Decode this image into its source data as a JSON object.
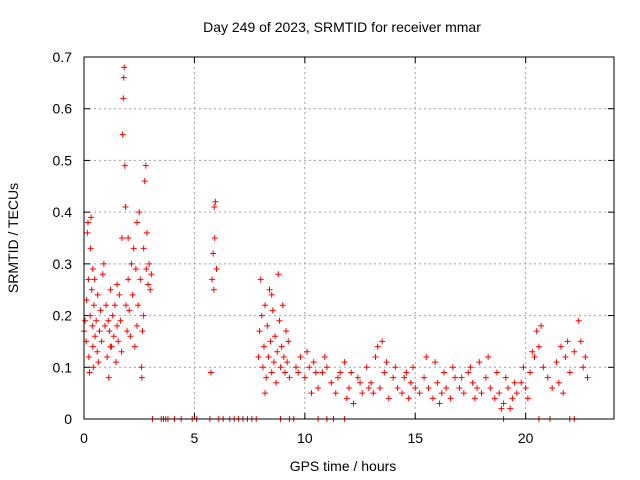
{
  "chart_data": {
    "type": "scatter",
    "title": "Day 249 of 2023, SRMTID for receiver mmar",
    "xlabel": "GPS time / hours",
    "ylabel": "SRMTID / TECUs",
    "xlim": [
      0,
      24
    ],
    "ylim": [
      0,
      0.7
    ],
    "xticks": [
      0,
      5,
      10,
      15,
      20
    ],
    "yticks": [
      0,
      0.1,
      0.2,
      0.3,
      0.4,
      0.5,
      0.6,
      0.7
    ],
    "grid": true,
    "marker": "+",
    "color": "#ff0000",
    "series": [
      {
        "name": "mmar",
        "points": [
          [
            0.0,
            0.17
          ],
          [
            0.05,
            0.19
          ],
          [
            0.1,
            0.15
          ],
          [
            0.12,
            0.23
          ],
          [
            0.15,
            0.36
          ],
          [
            0.18,
            0.38
          ],
          [
            0.2,
            0.27
          ],
          [
            0.22,
            0.12
          ],
          [
            0.25,
            0.09
          ],
          [
            0.28,
            0.2
          ],
          [
            0.3,
            0.33
          ],
          [
            0.32,
            0.39
          ],
          [
            0.35,
            0.25
          ],
          [
            0.38,
            0.18
          ],
          [
            0.4,
            0.14
          ],
          [
            0.42,
            0.1
          ],
          [
            0.45,
            0.22
          ],
          [
            0.48,
            0.27
          ],
          [
            0.5,
            0.16
          ],
          [
            0.55,
            0.19
          ],
          [
            0.6,
            0.13
          ],
          [
            0.62,
            0.24
          ],
          [
            0.65,
            0.11
          ],
          [
            0.7,
            0.17
          ],
          [
            0.75,
            0.21
          ],
          [
            0.8,
            0.15
          ],
          [
            0.85,
            0.28
          ],
          [
            0.9,
            0.3
          ],
          [
            0.95,
            0.18
          ],
          [
            1.0,
            0.22
          ],
          [
            1.05,
            0.12
          ],
          [
            1.1,
            0.19
          ],
          [
            1.12,
            0.08
          ],
          [
            1.15,
            0.17
          ],
          [
            1.2,
            0.25
          ],
          [
            1.25,
            0.14
          ],
          [
            1.3,
            0.2
          ],
          [
            1.35,
            0.16
          ],
          [
            1.4,
            0.22
          ],
          [
            1.45,
            0.11
          ],
          [
            1.5,
            0.18
          ],
          [
            1.55,
            0.15
          ],
          [
            1.6,
            0.24
          ],
          [
            1.65,
            0.19
          ],
          [
            1.7,
            0.13
          ],
          [
            1.72,
            0.35
          ],
          [
            1.75,
            0.55
          ],
          [
            1.78,
            0.62
          ],
          [
            1.8,
            0.66
          ],
          [
            1.82,
            0.68
          ],
          [
            1.85,
            0.49
          ],
          [
            1.88,
            0.41
          ],
          [
            1.9,
            0.22
          ],
          [
            1.95,
            0.17
          ],
          [
            2.0,
            0.27
          ],
          [
            2.05,
            0.21
          ],
          [
            2.1,
            0.16
          ],
          [
            2.15,
            0.3
          ],
          [
            2.2,
            0.24
          ],
          [
            2.25,
            0.33
          ],
          [
            2.3,
            0.14
          ],
          [
            2.35,
            0.29
          ],
          [
            2.4,
            0.38
          ],
          [
            2.45,
            0.22
          ],
          [
            2.5,
            0.4
          ],
          [
            2.55,
            0.27
          ],
          [
            2.6,
            0.1
          ],
          [
            2.62,
            0.08
          ],
          [
            2.65,
            0.17
          ],
          [
            2.7,
            0.33
          ],
          [
            2.75,
            0.46
          ],
          [
            2.8,
            0.49
          ],
          [
            2.82,
            0.29
          ],
          [
            2.85,
            0.36
          ],
          [
            2.9,
            0.26
          ],
          [
            2.95,
            0.3
          ],
          [
            3.0,
            0.25
          ],
          [
            3.05,
            0.28
          ],
          [
            1.2,
            0.14
          ],
          [
            1.5,
            0.26
          ],
          [
            0.4,
            0.29
          ],
          [
            2.0,
            0.35
          ],
          [
            2.4,
            0.18
          ],
          [
            2.7,
            0.2
          ],
          [
            3.1,
            0.0
          ],
          [
            3.5,
            0.0
          ],
          [
            3.6,
            0.0
          ],
          [
            3.7,
            0.0
          ],
          [
            3.8,
            0.0
          ],
          [
            4.1,
            0.0
          ],
          [
            4.4,
            0.0
          ],
          [
            4.9,
            0.0
          ],
          [
            5.1,
            0.0
          ],
          [
            5.7,
            0.0
          ],
          [
            6.1,
            0.0
          ],
          [
            6.3,
            0.0
          ],
          [
            6.6,
            0.0
          ],
          [
            6.8,
            0.0
          ],
          [
            7.0,
            0.0
          ],
          [
            7.2,
            0.0
          ],
          [
            7.4,
            0.0
          ],
          [
            7.6,
            0.0
          ],
          [
            7.8,
            0.0
          ],
          [
            8.9,
            0.0
          ],
          [
            9.3,
            0.0
          ],
          [
            9.5,
            0.0
          ],
          [
            10.6,
            0.0
          ],
          [
            11.0,
            0.0
          ],
          [
            11.3,
            0.0
          ],
          [
            11.8,
            0.0
          ],
          [
            19.0,
            0.0
          ],
          [
            20.6,
            0.0
          ],
          [
            21.1,
            0.0
          ],
          [
            22.0,
            0.0
          ],
          [
            22.2,
            0.0
          ],
          [
            5.75,
            0.09
          ],
          [
            5.8,
            0.27
          ],
          [
            5.85,
            0.32
          ],
          [
            5.9,
            0.41
          ],
          [
            5.95,
            0.42
          ],
          [
            6.0,
            0.29
          ],
          [
            5.88,
            0.25
          ],
          [
            5.92,
            0.35
          ],
          [
            7.9,
            0.12
          ],
          [
            7.95,
            0.17
          ],
          [
            8.0,
            0.27
          ],
          [
            8.05,
            0.2
          ],
          [
            8.1,
            0.1
          ],
          [
            8.15,
            0.14
          ],
          [
            8.2,
            0.22
          ],
          [
            8.25,
            0.08
          ],
          [
            8.3,
            0.18
          ],
          [
            8.35,
            0.12
          ],
          [
            8.4,
            0.25
          ],
          [
            8.45,
            0.15
          ],
          [
            8.5,
            0.09
          ],
          [
            8.55,
            0.21
          ],
          [
            8.6,
            0.11
          ],
          [
            8.65,
            0.16
          ],
          [
            8.7,
            0.07
          ],
          [
            8.75,
            0.13
          ],
          [
            8.8,
            0.28
          ],
          [
            8.85,
            0.19
          ],
          [
            8.9,
            0.1
          ],
          [
            8.95,
            0.14
          ],
          [
            9.0,
            0.22
          ],
          [
            9.05,
            0.12
          ],
          [
            9.1,
            0.09
          ],
          [
            9.15,
            0.17
          ],
          [
            9.2,
            0.11
          ],
          [
            9.25,
            0.15
          ],
          [
            9.3,
            0.08
          ],
          [
            8.2,
            0.05
          ],
          [
            8.5,
            0.24
          ],
          [
            9.6,
            0.1
          ],
          [
            9.8,
            0.12
          ],
          [
            10.0,
            0.08
          ],
          [
            10.2,
            0.1
          ],
          [
            10.4,
            0.11
          ],
          [
            10.6,
            0.06
          ],
          [
            10.8,
            0.09
          ],
          [
            11.0,
            0.1
          ],
          [
            11.2,
            0.07
          ],
          [
            11.4,
            0.05
          ],
          [
            11.6,
            0.09
          ],
          [
            11.8,
            0.11
          ],
          [
            12.0,
            0.06
          ],
          [
            12.2,
            0.03
          ],
          [
            12.4,
            0.08
          ],
          [
            12.6,
            0.05
          ],
          [
            12.8,
            0.1
          ],
          [
            13.0,
            0.07
          ],
          [
            13.2,
            0.12
          ],
          [
            13.4,
            0.06
          ],
          [
            13.6,
            0.09
          ],
          [
            13.8,
            0.04
          ],
          [
            14.0,
            0.08
          ],
          [
            14.2,
            0.06
          ],
          [
            14.4,
            0.05
          ],
          [
            14.6,
            0.09
          ],
          [
            14.8,
            0.07
          ],
          [
            15.0,
            0.06
          ],
          [
            15.2,
            0.05
          ],
          [
            15.4,
            0.08
          ],
          [
            15.6,
            0.06
          ],
          [
            15.8,
            0.04
          ],
          [
            16.0,
            0.07
          ],
          [
            16.2,
            0.05
          ],
          [
            16.4,
            0.06
          ],
          [
            16.6,
            0.04
          ],
          [
            16.8,
            0.08
          ],
          [
            17.0,
            0.06
          ],
          [
            17.2,
            0.05
          ],
          [
            17.4,
            0.09
          ],
          [
            17.6,
            0.07
          ],
          [
            17.8,
            0.06
          ],
          [
            18.0,
            0.05
          ],
          [
            18.2,
            0.08
          ],
          [
            18.4,
            0.06
          ],
          [
            18.6,
            0.04
          ],
          [
            18.8,
            0.05
          ],
          [
            19.0,
            0.03
          ],
          [
            19.2,
            0.06
          ],
          [
            19.4,
            0.04
          ],
          [
            19.6,
            0.05
          ],
          [
            19.8,
            0.07
          ],
          [
            20.0,
            0.06
          ],
          [
            20.2,
            0.09
          ],
          [
            20.4,
            0.12
          ],
          [
            20.6,
            0.14
          ],
          [
            20.8,
            0.1
          ],
          [
            21.0,
            0.08
          ],
          [
            21.2,
            0.06
          ],
          [
            21.4,
            0.11
          ],
          [
            21.6,
            0.14
          ],
          [
            21.8,
            0.12
          ],
          [
            22.0,
            0.09
          ],
          [
            22.2,
            0.13
          ],
          [
            22.4,
            0.19
          ],
          [
            22.6,
            0.1
          ],
          [
            22.8,
            0.08
          ],
          [
            9.7,
            0.09
          ],
          [
            10.1,
            0.13
          ],
          [
            10.5,
            0.09
          ],
          [
            10.9,
            0.12
          ],
          [
            11.5,
            0.08
          ],
          [
            12.1,
            0.09
          ],
          [
            12.5,
            0.07
          ],
          [
            12.9,
            0.06
          ],
          [
            13.3,
            0.14
          ],
          [
            13.5,
            0.15
          ],
          [
            13.7,
            0.11
          ],
          [
            14.1,
            0.1
          ],
          [
            14.5,
            0.08
          ],
          [
            14.9,
            0.1
          ],
          [
            15.5,
            0.12
          ],
          [
            15.9,
            0.11
          ],
          [
            16.3,
            0.09
          ],
          [
            16.7,
            0.1
          ],
          [
            17.1,
            0.08
          ],
          [
            17.5,
            0.1
          ],
          [
            17.9,
            0.11
          ],
          [
            18.3,
            0.12
          ],
          [
            18.7,
            0.09
          ],
          [
            19.1,
            0.08
          ],
          [
            19.5,
            0.07
          ],
          [
            19.9,
            0.1
          ],
          [
            20.3,
            0.13
          ],
          [
            20.5,
            0.17
          ],
          [
            20.7,
            0.18
          ],
          [
            21.5,
            0.07
          ],
          [
            21.9,
            0.15
          ],
          [
            22.5,
            0.15
          ],
          [
            22.7,
            0.12
          ],
          [
            10.3,
            0.05
          ],
          [
            11.9,
            0.04
          ],
          [
            13.1,
            0.05
          ],
          [
            14.7,
            0.04
          ],
          [
            16.1,
            0.03
          ],
          [
            17.7,
            0.04
          ],
          [
            18.9,
            0.02
          ],
          [
            19.3,
            0.02
          ],
          [
            20.1,
            0.04
          ],
          [
            21.7,
            0.05
          ]
        ]
      }
    ]
  }
}
